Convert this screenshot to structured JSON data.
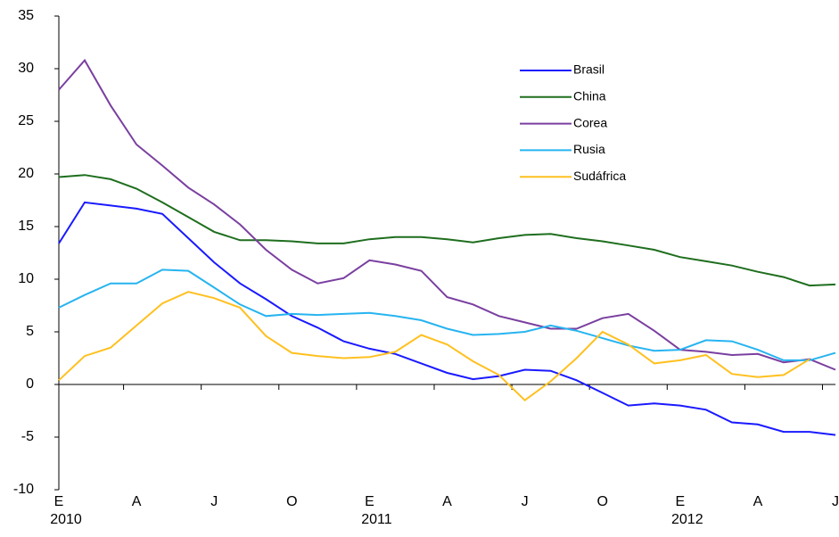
{
  "chart_data": {
    "type": "line",
    "categories": [
      "E",
      null,
      null,
      "A",
      null,
      null,
      "J",
      null,
      null,
      "O",
      null,
      null,
      "E",
      null,
      null,
      "A",
      null,
      null,
      "J",
      null,
      null,
      "O",
      null,
      null,
      "E",
      null,
      null,
      "A",
      null,
      null,
      "J"
    ],
    "years": [
      "2010",
      "2011",
      "2012"
    ],
    "series": [
      {
        "name": "Brasil",
        "color": "#1a1aff",
        "values": [
          13.4,
          17.3,
          17.0,
          16.7,
          16.2,
          13.9,
          11.6,
          9.6,
          8.1,
          6.5,
          5.4,
          4.1,
          3.4,
          2.9,
          2.0,
          1.1,
          0.5,
          0.8,
          1.4,
          1.3,
          0.4,
          -0.8,
          -2.0,
          -1.8,
          -2.0,
          -2.4,
          -3.6,
          -3.8,
          -4.5,
          -4.5,
          -4.8
        ]
      },
      {
        "name": "China",
        "color": "#1e6e1e",
        "values": [
          19.7,
          19.9,
          19.5,
          18.6,
          17.3,
          15.9,
          14.5,
          13.7,
          13.7,
          13.6,
          13.4,
          13.4,
          13.8,
          14.0,
          14.0,
          13.8,
          13.5,
          13.9,
          14.2,
          14.3,
          13.9,
          13.6,
          13.2,
          12.8,
          12.1,
          11.7,
          11.3,
          10.7,
          10.2,
          9.4,
          9.5
        ]
      },
      {
        "name": "Corea",
        "color": "#7a3fa0",
        "values": [
          28.0,
          30.8,
          26.5,
          22.8,
          20.8,
          18.7,
          17.1,
          15.2,
          12.8,
          10.9,
          9.6,
          10.1,
          11.8,
          11.4,
          10.8,
          8.3,
          7.6,
          6.5,
          5.9,
          5.3,
          5.3,
          6.3,
          6.7,
          5.1,
          3.3,
          3.1,
          2.8,
          2.9,
          2.1,
          2.4,
          1.4
        ]
      },
      {
        "name": "Rusia",
        "color": "#27b4f0",
        "values": [
          7.3,
          8.5,
          9.6,
          9.6,
          10.9,
          10.8,
          9.2,
          7.6,
          6.5,
          6.7,
          6.6,
          6.7,
          6.8,
          6.5,
          6.1,
          5.3,
          4.7,
          4.8,
          5.0,
          5.6,
          5.1,
          4.4,
          3.7,
          3.2,
          3.3,
          4.2,
          4.1,
          3.3,
          2.3,
          2.3,
          3.0
        ]
      },
      {
        "name": "Sudáfrica",
        "color": "#ffc020",
        "values": [
          0.4,
          2.7,
          3.5,
          5.6,
          7.7,
          8.8,
          8.2,
          7.3,
          4.6,
          3.0,
          2.7,
          2.5,
          2.6,
          3.1,
          4.7,
          3.8,
          2.2,
          0.9,
          -1.5,
          0.3,
          2.5,
          5.0,
          3.8,
          2.0,
          2.3,
          2.8,
          1.0,
          0.7,
          0.9,
          2.4,
          null
        ]
      }
    ],
    "ylim": [
      -10,
      35
    ],
    "yticks": [
      -10,
      -5,
      0,
      5,
      10,
      15,
      20,
      25,
      30,
      35
    ],
    "legend": "upper right"
  }
}
